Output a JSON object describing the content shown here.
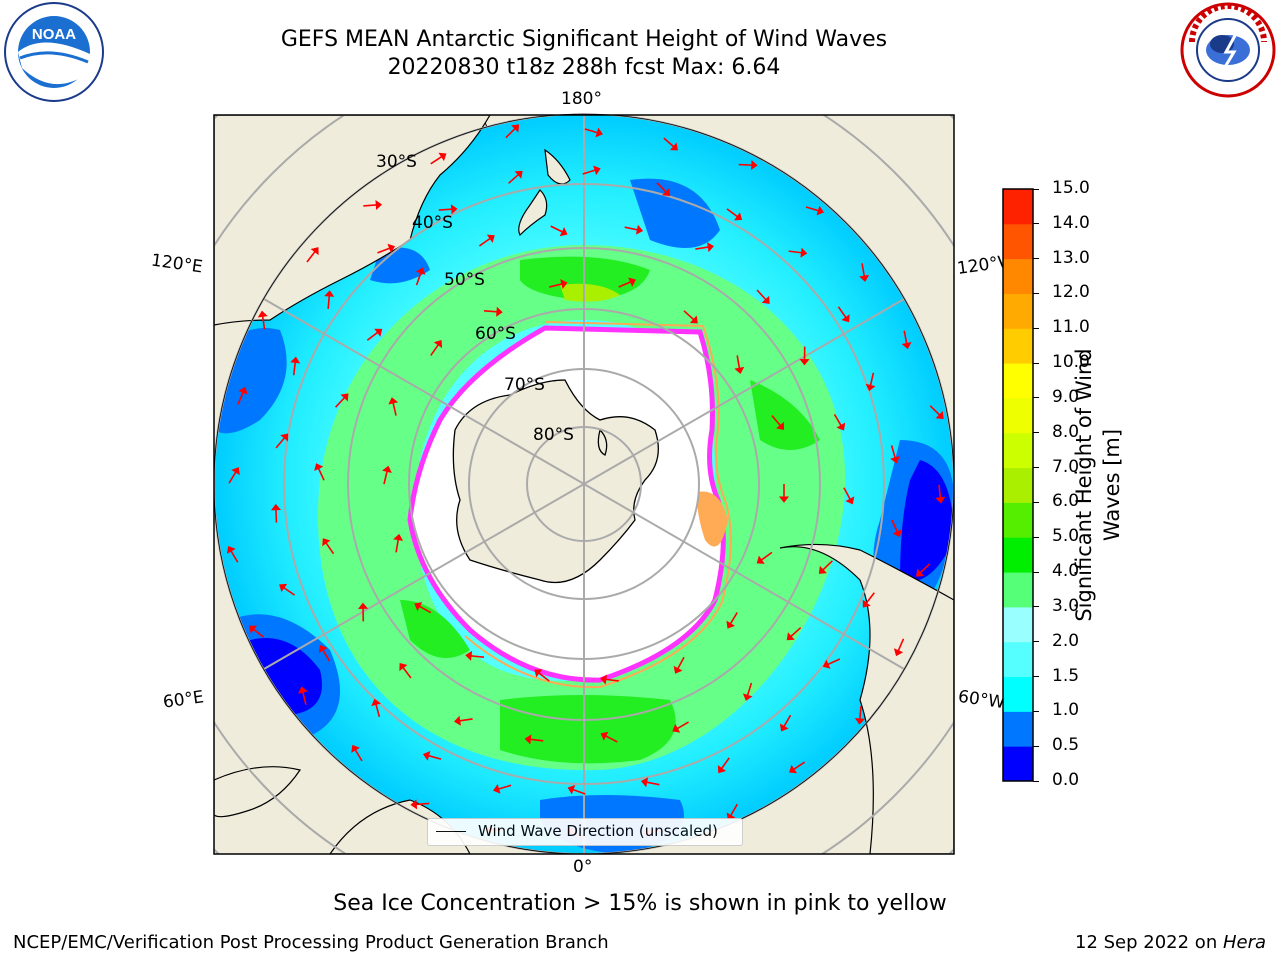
{
  "header": {
    "title_line1": "GEFS MEAN Antarctic Significant Height of Wind Waves",
    "title_line2": "20220830 t18z 288h fcst   Max: 6.64"
  },
  "logos": {
    "left": "NOAA",
    "left_ring_text": "NATIONAL OCEANIC AND ATMOSPHERIC ADMINISTRATION · U.S. DEPARTMENT OF COMMERCE",
    "right_ring_text": "NATIONAL WEATHER SERVICE"
  },
  "map": {
    "projection": "south-polar-stereographic",
    "longitude_labels": [
      "180°",
      "120°E",
      "120°W",
      "60°E",
      "60°W",
      "0°"
    ],
    "latitude_labels": [
      "30°S",
      "40°S",
      "50°S",
      "60°S",
      "70°S",
      "80°S"
    ],
    "legend_label": "Wind Wave Direction (unscaled)",
    "ocean_colors": {
      "low": "#0000ff",
      "mid": "#00ffff",
      "high": "#00dd00"
    },
    "land_color": "#efecdc",
    "ice_edge_colors": [
      "#ff33ff",
      "#ffaa55",
      "#ffff88"
    ],
    "arrow_color": "#ff0000"
  },
  "colorbar": {
    "label_line1": "Significant Height of Wind",
    "label_line2": "Waves [m]",
    "ticks": [
      "0.0",
      "0.5",
      "1.0",
      "1.5",
      "2.0",
      "3.0",
      "4.0",
      "5.0",
      "6.0",
      "7.0",
      "8.0",
      "9.0",
      "10.0",
      "11.0",
      "12.0",
      "13.0",
      "14.0",
      "15.0"
    ],
    "colors": [
      "#0000ff",
      "#0077ff",
      "#00ffff",
      "#55ffff",
      "#99ffff",
      "#55ff77",
      "#00ee00",
      "#55ee00",
      "#aaee00",
      "#ccff00",
      "#eeff00",
      "#ffff00",
      "#ffcc00",
      "#ffaa00",
      "#ff8800",
      "#ff5500",
      "#ff2200"
    ]
  },
  "footer": {
    "note": "Sea Ice Concentration > 15% is shown in pink to yellow",
    "left": "NCEP/EMC/Verification Post Processing Product Generation Branch",
    "right_date": "12 Sep 2022 on ",
    "right_host": "Hera"
  }
}
